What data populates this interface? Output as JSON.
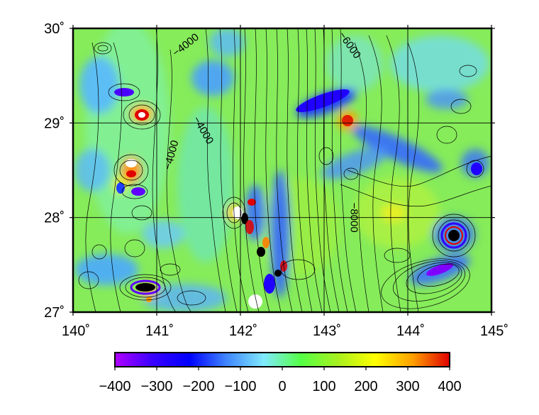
{
  "map": {
    "lon_range": [
      140,
      145
    ],
    "lat_range": [
      27,
      30
    ],
    "x_ticks": [
      {
        "value": 140,
        "label": "140˚"
      },
      {
        "value": 141,
        "label": "141˚"
      },
      {
        "value": 142,
        "label": "142˚"
      },
      {
        "value": 143,
        "label": "143˚"
      },
      {
        "value": 144,
        "label": "144˚"
      },
      {
        "value": 145,
        "label": "145˚"
      }
    ],
    "y_ticks": [
      {
        "value": 27,
        "label": "27˚"
      },
      {
        "value": 28,
        "label": "28˚"
      },
      {
        "value": 29,
        "label": "29˚"
      },
      {
        "value": 30,
        "label": "30˚"
      }
    ],
    "grid": true,
    "contour_labels": [
      {
        "text": "−4000",
        "lon": 141.35,
        "lat": 29.82,
        "angle": -38
      },
      {
        "text": "−4000",
        "lon": 141.55,
        "lat": 28.92,
        "angle": 60
      },
      {
        "text": "−4000",
        "lon": 141.18,
        "lat": 28.66,
        "angle": -75
      },
      {
        "text": "−6000",
        "lon": 143.3,
        "lat": 29.82,
        "angle": 55
      },
      {
        "text": "−8000",
        "lon": 143.35,
        "lat": 28.0,
        "angle": 90
      }
    ],
    "colormap": {
      "range": [
        -400,
        400
      ],
      "ticks": [
        "−400",
        "−300",
        "−200",
        "−100",
        "0",
        "100",
        "200",
        "300",
        "400"
      ],
      "stops": [
        "#b000ff",
        "#3a00ff",
        "#0000ff",
        "#3f86ff",
        "#80eaff",
        "#55ff45",
        "#a8f01e",
        "#ffff00",
        "#ffa000",
        "#e00000"
      ]
    }
  }
}
